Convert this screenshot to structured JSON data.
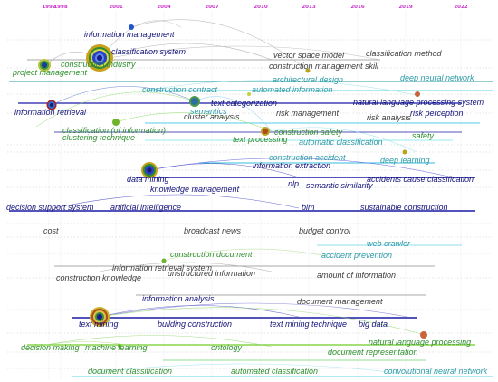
{
  "years": [
    "1997",
    "1998",
    "2001",
    "2004",
    "2007",
    "2010",
    "2013",
    "2016",
    "2019",
    "2022"
  ],
  "colors": {
    "year_label": "#cc33cc",
    "dark_blue": "#1a1aa6",
    "navy_text": "#12127a",
    "teal": "#2a9aa6",
    "green": "#2f8f2f",
    "gray_text": "#3c3c3c",
    "gray_line": "#8c8c8c",
    "node_green": "#6fb52c",
    "node_olive": "#b9a21e",
    "node_brown": "#c9643a",
    "node_blue": "#2255cc"
  },
  "keywords": [
    "information management",
    "classification system",
    "construction industry",
    "project management",
    "vector space model",
    "classification method",
    "construction management skill",
    "architectural design",
    "deep neural network",
    "construction contract",
    "automated information",
    "text categorization",
    "natural language processing system",
    "information retrieval",
    "semantics",
    "cluster analysis",
    "risk management",
    "risk perception",
    "risk analysis",
    "classification (of information)",
    "clustering technique",
    "text processing",
    "construction safety",
    "automatic classification",
    "safety",
    "construction accident",
    "information extraction",
    "deep learning",
    "data mining",
    "knowledge management",
    "nlp",
    "semantic similarity",
    "accidents cause classification",
    "decision support system",
    "artificial intelligence",
    "bim",
    "sustainable construction",
    "cost",
    "broadcast news",
    "budget control",
    "web crawler",
    "construction document",
    "accident prevention",
    "information retrieval system",
    "construction knowledge",
    "unstructured information",
    "amount of information",
    "information analysis",
    "document management",
    "text mining",
    "building construction",
    "text mining technique",
    "big data",
    "natural language processing",
    "decision making",
    "machine learning",
    "ontology",
    "document representation",
    "document classification",
    "automated classification",
    "convolutional neural network"
  ]
}
